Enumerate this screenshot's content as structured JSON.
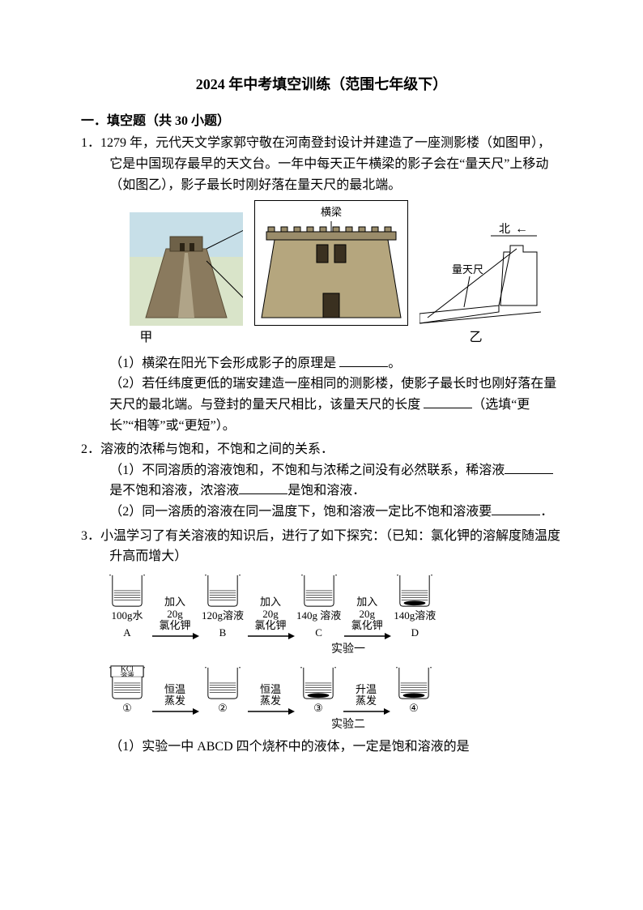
{
  "colors": {
    "text": "#000000",
    "bg": "#ffffff",
    "line": "#000000",
    "sky": "#c7dfe8",
    "wall": "#8a7a5e",
    "wall_dark": "#6e6148",
    "frame": "#000000",
    "water": "#ffffff",
    "water_line": "#000000",
    "arrow": "#000000"
  },
  "title": "2024 年中考填空训练（范围七年级下）",
  "section": "一．填空题（共 30 小题）",
  "q1": {
    "num": "1．",
    "body1": "1279 年，元代天文学家郭守敬在河南登封设计并建造了一座测影楼（如图甲），它是中国现存最早的天文台。一年中每天正午横梁的影子会在“量天尺”上移动（如图乙），影子最长时刚好落在量天尺的最北端。",
    "beam_label": "横梁",
    "side": {
      "north": "北",
      "arrow": "←",
      "ruler": "量天尺"
    },
    "cap_a": "甲",
    "cap_b": "乙",
    "p1a": "（1）横梁在阳光下会形成影子的原理是 ",
    "p1b": "。",
    "p2a": "（2）若任纬度更低的瑞安建造一座相同的测影楼，使影子最长时也刚好落在量天尺的最北端。与登封的量天尺相比，该量天尺的长度 ",
    "p2b": "（选填“更长”“相等”或“更短”）。"
  },
  "q2": {
    "num": "2．",
    "body": "溶液的浓稀与饱和，不饱和之间的关系．",
    "p1a": "（1）不同溶质的溶液饱和，不饱和与浓稀之间没有必然联系，稀溶液",
    "p1b": "是不饱和溶液，浓溶液",
    "p1c": "是饱和溶液．",
    "p2a": "（2）同一溶质的溶液在同一温度下，饱和溶液一定比不饱和溶液要",
    "p2b": "．"
  },
  "q3": {
    "num": "3．",
    "body": "小温学习了有关溶液的知识后，进行了如下探究：（已知：氯化钾的溶解度随温度升高而增大）",
    "exp1": {
      "arrow_top": "加入",
      "arrow_mid": "20g",
      "arrow_bot": "氯化钾",
      "beakers": [
        {
          "top": "",
          "bottom1": "100g水",
          "bottom2": "A",
          "sediment": false,
          "tag": ""
        },
        {
          "top": "",
          "bottom1": "120g溶液",
          "bottom2": "B",
          "sediment": false,
          "tag": ""
        },
        {
          "top": "",
          "bottom1": "140g 溶液",
          "bottom2": "C",
          "sediment": false,
          "tag": ""
        },
        {
          "top": "",
          "bottom1": "140g溶液",
          "bottom2": "D",
          "sediment": true,
          "tag": ""
        }
      ],
      "label": "实验一"
    },
    "exp2": {
      "arrows": [
        "恒温\n蒸发",
        "恒温\n蒸发",
        "升温\n蒸发"
      ],
      "beakers": [
        {
          "top": "KCl",
          "top2": "溶液",
          "bottom1": "①",
          "sediment": false
        },
        {
          "top": "",
          "top2": "",
          "bottom1": "②",
          "sediment": false
        },
        {
          "top": "",
          "top2": "",
          "bottom1": "③",
          "sediment": true
        },
        {
          "top": "",
          "top2": "",
          "bottom1": "④",
          "sediment": true
        }
      ],
      "label": "实验二"
    },
    "p1": "（1）实验一中 ABCD  四个烧杯中的液体，一定是饱和溶液的是"
  }
}
